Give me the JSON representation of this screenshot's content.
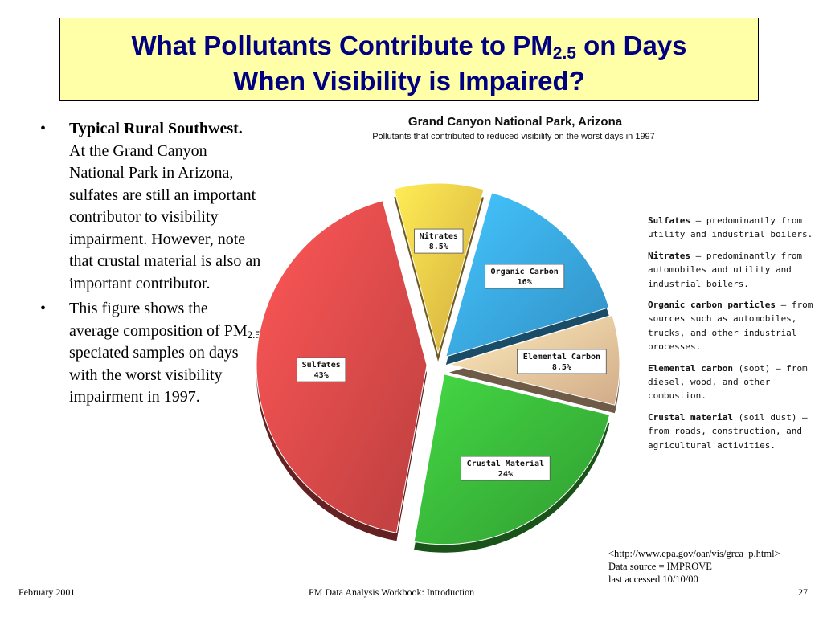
{
  "slide": {
    "title_part1": "What Pollutants Contribute to PM",
    "title_sub": "2.5",
    "title_part2": " on Days",
    "title_line2": "When Visibility is Impaired?"
  },
  "bullets": [
    {
      "bold": "Typical Rural Southwest.",
      "text": " At the Grand Canyon National Park in Arizona, sulfates are still an important contributor to visibility impairment. However, note that crustal material is also an important contributor."
    },
    {
      "text_before": "This figure shows the average composition of PM",
      "sub": "2.5",
      "text_after": " speciated samples on days with the worst visibility impairment in 1997."
    }
  ],
  "chart_data": {
    "type": "pie",
    "title": "Grand Canyon National Park, Arizona",
    "subtitle": "Pollutants that contributed to reduced visibility on the worst days in 1997",
    "slices": [
      {
        "name": "Nitrates",
        "value": 8.5,
        "label": "8.5%",
        "color": "#f7c948"
      },
      {
        "name": "Organic Carbon",
        "value": 16,
        "label": "16%",
        "color": "#3aa8e6"
      },
      {
        "name": "Elemental Carbon",
        "value": 8.5,
        "label": "8.5%",
        "color": "#f6c9a0"
      },
      {
        "name": "Crustal Material",
        "value": 24,
        "label": "24%",
        "color": "#3ab83a"
      },
      {
        "name": "Sulfates",
        "value": 43,
        "label": "43%",
        "color": "#dd4a4a"
      }
    ]
  },
  "legend": [
    {
      "term": "Sulfates",
      "text": " – predominantly from utility and industrial boilers."
    },
    {
      "term": "Nitrates",
      "text": " – predominantly from automobiles and utility and industrial boilers."
    },
    {
      "term": "Organic carbon particles",
      "text": " – from sources such as automobiles, trucks, and other industrial processes."
    },
    {
      "term": "Elemental carbon",
      "text": " (soot) – from diesel, wood, and other combustion."
    },
    {
      "term": "Crustal material",
      "text": " (soil dust) – from roads, construction, and agricultural activities."
    }
  ],
  "source": {
    "line1": "<http://www.epa.gov/oar/vis/grca_p.html>",
    "line2": "Data source = IMPROVE",
    "line3": "last accessed 10/10/00"
  },
  "footer": {
    "date": "February 2001",
    "center": "PM Data Analysis Workbook: Introduction",
    "page": "27"
  }
}
